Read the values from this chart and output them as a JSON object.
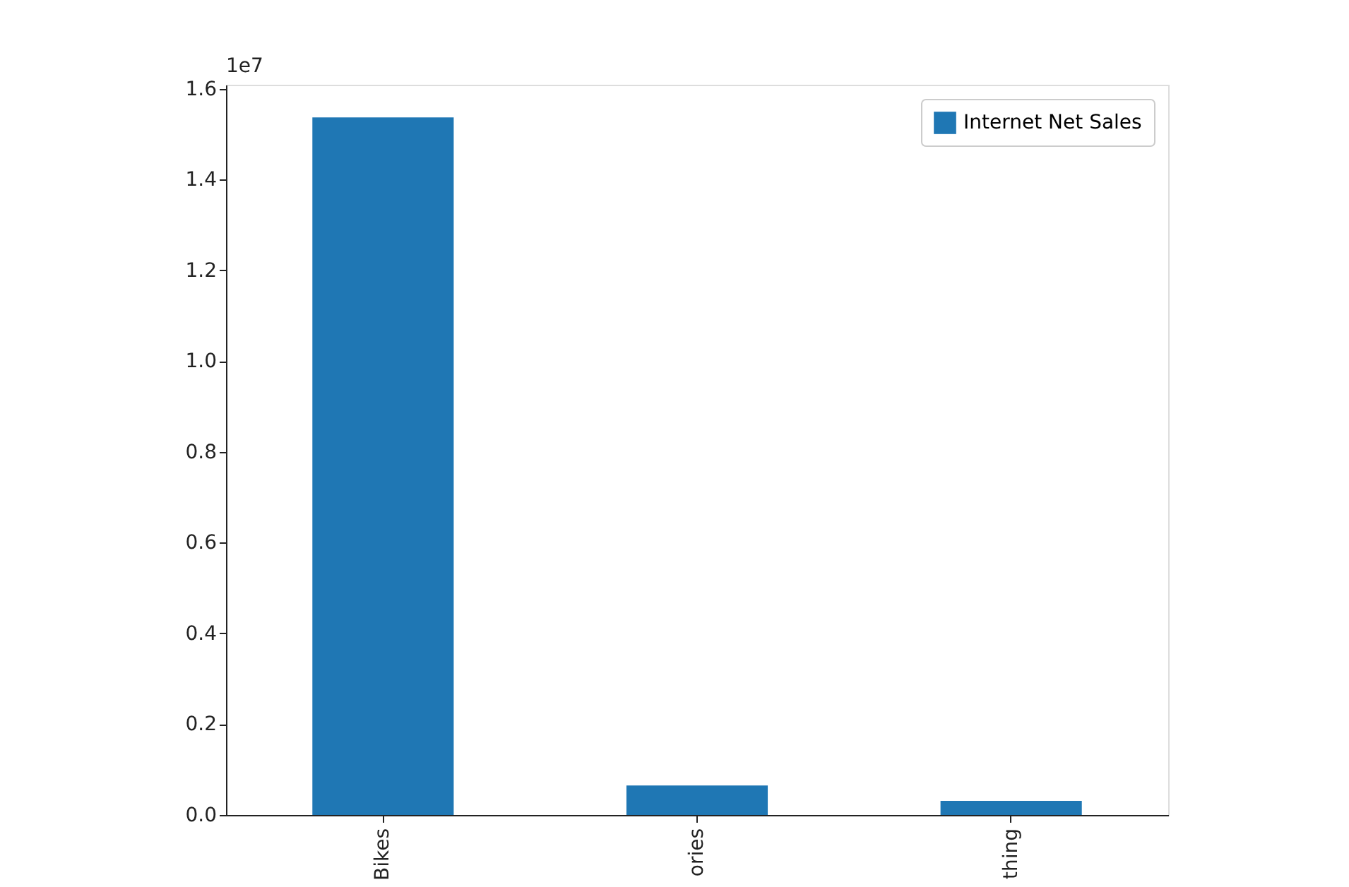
{
  "chart_data": {
    "type": "bar",
    "categories": [
      "Bikes",
      "ories",
      "thing"
    ],
    "series": [
      {
        "name": "Internet Net Sales",
        "color": "#1f77b4",
        "values": [
          1.537,
          0.065,
          0.031
        ]
      }
    ],
    "ylim": [
      0,
      1.609
    ],
    "yticks": [
      {
        "value": 0,
        "label": "0.0"
      },
      0.2,
      0.4,
      0.6,
      0.8,
      {
        "value": 1,
        "label": "1.0"
      },
      1.2,
      1.4,
      1.6
    ],
    "annotations": [
      "1e7"
    ],
    "grid": false,
    "legend": "top right"
  }
}
